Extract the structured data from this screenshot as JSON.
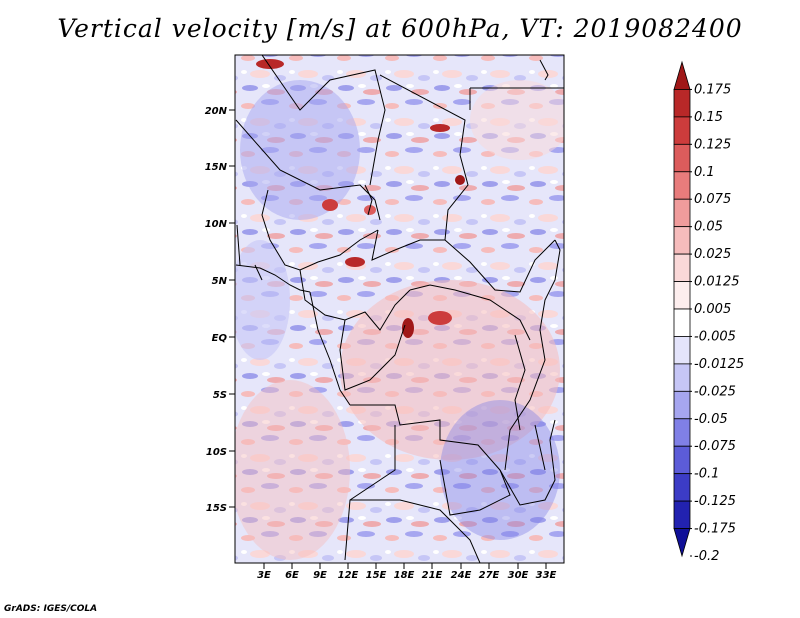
{
  "title": "Vertical velocity [m/s] at 600hPa, VT: 2019082400",
  "credit": "GrADS: IGES/COLA",
  "map": {
    "lat_labels": [
      "20N",
      "15N",
      "10N",
      "5N",
      "EQ",
      "5S",
      "10S",
      "15S"
    ],
    "lon_labels": [
      "3E",
      "6E",
      "9E",
      "12E",
      "15E",
      "18E",
      "21E",
      "24E",
      "27E",
      "30E",
      "33E"
    ]
  },
  "colorbar": {
    "labels": [
      "0.175",
      "0.15",
      "0.125",
      "0.1",
      "0.075",
      "0.05",
      "0.025",
      "0.0125",
      "0.005",
      "-0.005",
      "-0.0125",
      "-0.025",
      "-0.05",
      "-0.075",
      "-0.1",
      "-0.125",
      "-0.175",
      "-0.2"
    ],
    "colors": [
      "#a01818",
      "#b82828",
      "#cc3c3c",
      "#dc5c5c",
      "#e87c7c",
      "#f09c9c",
      "#f6bcbc",
      "#fad8d8",
      "#fdeeee",
      "#ffffff",
      "#e4e4fb",
      "#c6c6f6",
      "#a6a6f0",
      "#8080e6",
      "#5c5cd8",
      "#3c3cc6",
      "#2222b0",
      "#101098"
    ]
  }
}
